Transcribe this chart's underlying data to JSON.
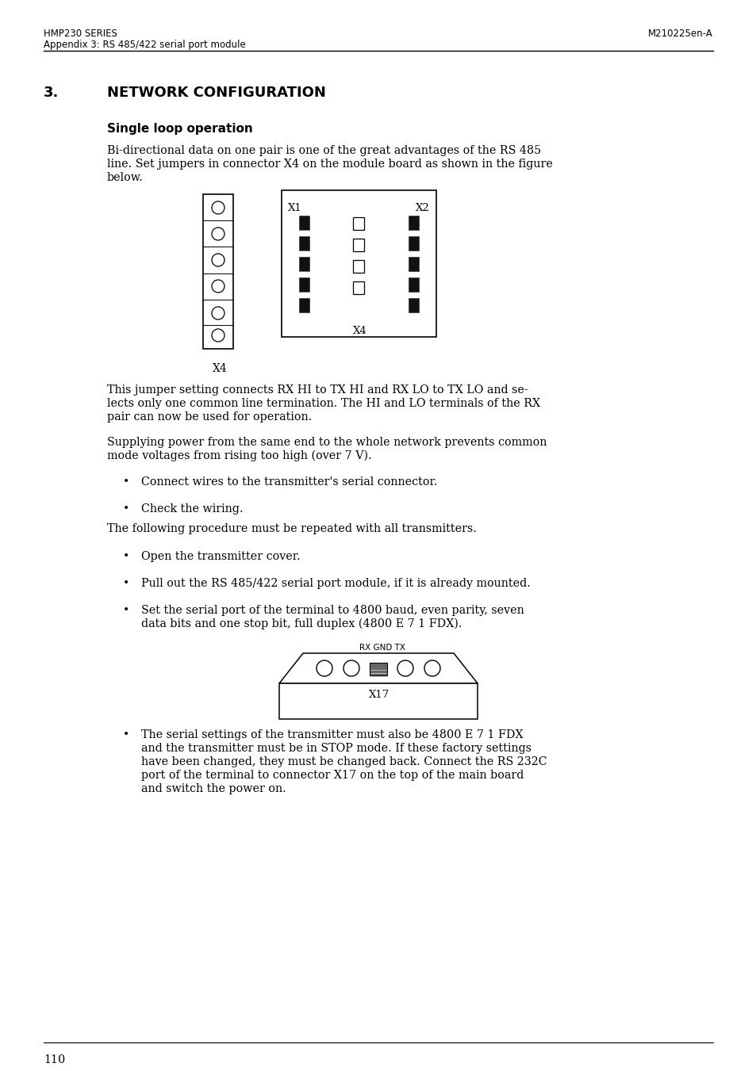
{
  "bg_color": "#ffffff",
  "header_left_line1": "HMP230 SERIES",
  "header_left_line2": "Appendix 3: RS 485/422 serial port module",
  "header_right": "M210225en-A",
  "section_number": "3.",
  "section_title": "NETWORK CONFIGURATION",
  "subsection_title": "Single loop operation",
  "para1_line1": "Bi-directional data on one pair is one of the great advantages of the RS 485",
  "para1_line2": "line. Set jumpers in connector X4 on the module board as shown in the figure",
  "para1_line3": "below.",
  "para2_line1": "This jumper setting connects RX HI to TX HI and RX LO to TX LO and se-",
  "para2_line2": "lects only one common line termination. The HI and LO terminals of the RX",
  "para2_line3": "pair can now be used for operation.",
  "para3_line1": "Supplying power from the same end to the whole network prevents common",
  "para3_line2": "mode voltages from rising too high (over 7 V).",
  "bullet1a": "Connect wires to the transmitter's serial connector.",
  "bullet1b": "Check the wiring.",
  "para4": "The following procedure must be repeated with all transmitters.",
  "bullet2a": "Open the transmitter cover.",
  "bullet2b": "Pull out the RS 485/422 serial port module, if it is already mounted.",
  "bullet2c_line1": "Set the serial port of the terminal to 4800 baud, even parity, seven",
  "bullet2c_line2": "data bits and one stop bit, full duplex (4800 E 7 1 FDX).",
  "bullet3_line1": "The serial settings of the transmitter must also be 4800 E 7 1 FDX",
  "bullet3_line2": "and the transmitter must be in STOP mode. If these factory settings",
  "bullet3_line3": "have been changed, they must be changed back. Connect the RS 232C",
  "bullet3_line4": "port of the terminal to connector X17 on the top of the main board",
  "bullet3_line5": "and switch the power on.",
  "rx_gnd_tx_label": "RX GND TX",
  "x17_label": "X17",
  "page_number": "110"
}
